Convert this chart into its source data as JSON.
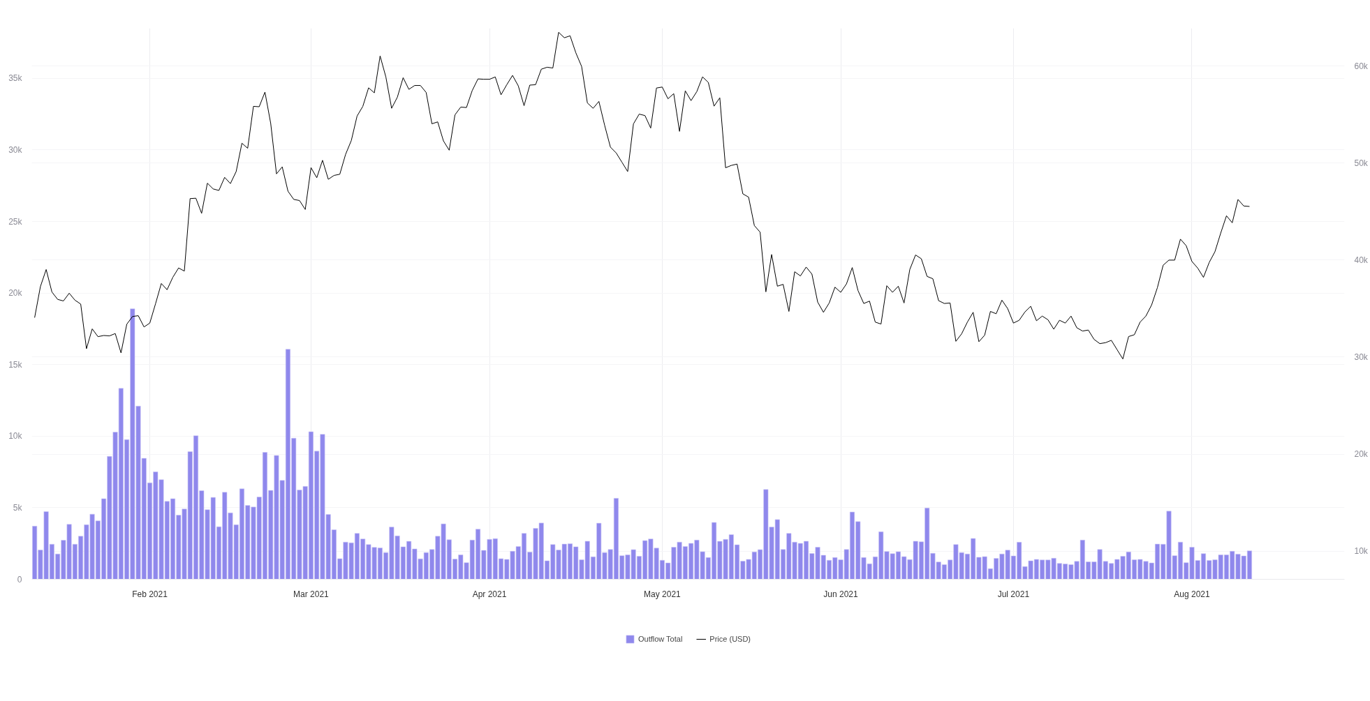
{
  "chart_data": {
    "type": "bar",
    "x": [
      "2021-01-12",
      "2021-01-13",
      "2021-01-14",
      "2021-01-15",
      "2021-01-16",
      "2021-01-17",
      "2021-01-18",
      "2021-01-19",
      "2021-01-20",
      "2021-01-21",
      "2021-01-22",
      "2021-01-23",
      "2021-01-24",
      "2021-01-25",
      "2021-01-26",
      "2021-01-27",
      "2021-01-28",
      "2021-01-29",
      "2021-01-30",
      "2021-01-31",
      "2021-02-01",
      "2021-02-02",
      "2021-02-03",
      "2021-02-04",
      "2021-02-05",
      "2021-02-06",
      "2021-02-07",
      "2021-02-08",
      "2021-02-09",
      "2021-02-10",
      "2021-02-11",
      "2021-02-12",
      "2021-02-13",
      "2021-02-14",
      "2021-02-15",
      "2021-02-16",
      "2021-02-17",
      "2021-02-18",
      "2021-02-19",
      "2021-02-20",
      "2021-02-21",
      "2021-02-22",
      "2021-02-23",
      "2021-02-24",
      "2021-02-25",
      "2021-02-26",
      "2021-02-27",
      "2021-02-28",
      "2021-03-01",
      "2021-03-02",
      "2021-03-03",
      "2021-03-04",
      "2021-03-05",
      "2021-03-06",
      "2021-03-07",
      "2021-03-08",
      "2021-03-09",
      "2021-03-10",
      "2021-03-11",
      "2021-03-12",
      "2021-03-13",
      "2021-03-14",
      "2021-03-15",
      "2021-03-16",
      "2021-03-17",
      "2021-03-18",
      "2021-03-19",
      "2021-03-20",
      "2021-03-21",
      "2021-03-22",
      "2021-03-23",
      "2021-03-24",
      "2021-03-25",
      "2021-03-26",
      "2021-03-27",
      "2021-03-28",
      "2021-03-29",
      "2021-03-30",
      "2021-03-31",
      "2021-04-01",
      "2021-04-02",
      "2021-04-03",
      "2021-04-04",
      "2021-04-05",
      "2021-04-06",
      "2021-04-07",
      "2021-04-08",
      "2021-04-09",
      "2021-04-10",
      "2021-04-11",
      "2021-04-12",
      "2021-04-13",
      "2021-04-14",
      "2021-04-15",
      "2021-04-16",
      "2021-04-17",
      "2021-04-18",
      "2021-04-19",
      "2021-04-20",
      "2021-04-21",
      "2021-04-22",
      "2021-04-23",
      "2021-04-24",
      "2021-04-25",
      "2021-04-26",
      "2021-04-27",
      "2021-04-28",
      "2021-04-29",
      "2021-04-30",
      "2021-05-01",
      "2021-05-02",
      "2021-05-03",
      "2021-05-04",
      "2021-05-05",
      "2021-05-06",
      "2021-05-07",
      "2021-05-08",
      "2021-05-09",
      "2021-05-10",
      "2021-05-11",
      "2021-05-12",
      "2021-05-13",
      "2021-05-14",
      "2021-05-15",
      "2021-05-16",
      "2021-05-17",
      "2021-05-18",
      "2021-05-19",
      "2021-05-20",
      "2021-05-21",
      "2021-05-22",
      "2021-05-23",
      "2021-05-24",
      "2021-05-25",
      "2021-05-26",
      "2021-05-27",
      "2021-05-28",
      "2021-05-29",
      "2021-05-30",
      "2021-05-31",
      "2021-06-01",
      "2021-06-02",
      "2021-06-03",
      "2021-06-04",
      "2021-06-05",
      "2021-06-06",
      "2021-06-07",
      "2021-06-08",
      "2021-06-09",
      "2021-06-10",
      "2021-06-11",
      "2021-06-12",
      "2021-06-13",
      "2021-06-14",
      "2021-06-15",
      "2021-06-16",
      "2021-06-17",
      "2021-06-18",
      "2021-06-19",
      "2021-06-20",
      "2021-06-21",
      "2021-06-22",
      "2021-06-23",
      "2021-06-24",
      "2021-06-25",
      "2021-06-26",
      "2021-06-27",
      "2021-06-28",
      "2021-06-29",
      "2021-06-30",
      "2021-07-01",
      "2021-07-02",
      "2021-07-03",
      "2021-07-04",
      "2021-07-05",
      "2021-07-06",
      "2021-07-07",
      "2021-07-08",
      "2021-07-09",
      "2021-07-10",
      "2021-07-11",
      "2021-07-12",
      "2021-07-13",
      "2021-07-14",
      "2021-07-15",
      "2021-07-16",
      "2021-07-17",
      "2021-07-18",
      "2021-07-19",
      "2021-07-20",
      "2021-07-21",
      "2021-07-22",
      "2021-07-23",
      "2021-07-24",
      "2021-07-25",
      "2021-07-26",
      "2021-07-27",
      "2021-07-28",
      "2021-07-29",
      "2021-07-30",
      "2021-07-31",
      "2021-08-01",
      "2021-08-02",
      "2021-08-03",
      "2021-08-04",
      "2021-08-05",
      "2021-08-06",
      "2021-08-07",
      "2021-08-08",
      "2021-08-09",
      "2021-08-10",
      "2021-08-11"
    ],
    "series": [
      {
        "name": "Outflow Total",
        "color": "#8f88ec",
        "values": [
          3710,
          2050,
          4730,
          2450,
          1770,
          2730,
          3840,
          2450,
          3010,
          3810,
          4550,
          4080,
          5630,
          8590,
          10280,
          13340,
          9760,
          18900,
          12100,
          8450,
          6740,
          7510,
          6960,
          5440,
          5630,
          4480,
          4910,
          8920,
          10030,
          6190,
          4860,
          5720,
          3670,
          6080,
          4640,
          3810,
          6320,
          5160,
          5050,
          5750,
          8870,
          6210,
          8650,
          6910,
          16070,
          9860,
          6240,
          6490,
          10310,
          8950,
          10130,
          4530,
          3460,
          1440,
          2600,
          2550,
          3210,
          2820,
          2430,
          2230,
          2190,
          1870,
          3650,
          3030,
          2270,
          2650,
          2120,
          1430,
          1870,
          2080,
          3010,
          3870,
          2760,
          1410,
          1710,
          1160,
          2740,
          3500,
          2020,
          2790,
          2840,
          1440,
          1390,
          1960,
          2290,
          3210,
          1900,
          3560,
          3930,
          1290,
          2430,
          2050,
          2460,
          2480,
          2270,
          1360,
          2660,
          1570,
          3920,
          1870,
          2080,
          5660,
          1650,
          1710,
          2070,
          1610,
          2700,
          2820,
          2180,
          1330,
          1140,
          2240,
          2600,
          2290,
          2510,
          2740,
          1930,
          1520,
          3970,
          2650,
          2790,
          3120,
          2410,
          1270,
          1390,
          1910,
          2070,
          6270,
          3650,
          4170,
          2080,
          3210,
          2600,
          2510,
          2660,
          1800,
          2240,
          1680,
          1330,
          1520,
          1360,
          2080,
          4700,
          4030,
          1520,
          1080,
          1570,
          3320,
          1940,
          1790,
          1930,
          1580,
          1380,
          2660,
          2620,
          4980,
          1820,
          1210,
          1020,
          1350,
          2430,
          1870,
          1770,
          2850,
          1540,
          1580,
          740,
          1460,
          1770,
          2040,
          1630,
          2590,
          890,
          1290,
          1390,
          1350,
          1350,
          1470,
          1110,
          1070,
          1020,
          1250,
          2740,
          1220,
          1220,
          2080,
          1250,
          1110,
          1390,
          1610,
          1910,
          1360,
          1390,
          1250,
          1140,
          2460,
          2450,
          4760,
          1650,
          2600,
          1160,
          2240,
          1320,
          1790,
          1320,
          1360,
          1710,
          1710,
          1960,
          1760,
          1630,
          1990
        ]
      },
      {
        "name": "Price (USD)",
        "type": "line",
        "color": "#000000",
        "axis": "y2",
        "values": [
          34070,
          37270,
          39030,
          36710,
          35950,
          35790,
          36590,
          35870,
          35470,
          30870,
          32910,
          32110,
          32230,
          32190,
          32430,
          30440,
          33390,
          34190,
          34270,
          33110,
          33510,
          35510,
          37590,
          36950,
          38230,
          39190,
          38870,
          46340,
          46380,
          44820,
          47930,
          47340,
          47180,
          48530,
          47890,
          49130,
          52050,
          51530,
          55850,
          55810,
          57320,
          54090,
          48890,
          49610,
          47100,
          46260,
          46140,
          45220,
          49530,
          48490,
          50290,
          48330,
          48730,
          48850,
          50890,
          52330,
          54850,
          55850,
          57760,
          57240,
          61040,
          58880,
          55650,
          56800,
          58800,
          57600,
          58000,
          58000,
          57280,
          54050,
          54250,
          52290,
          51330,
          54970,
          55770,
          55730,
          57480,
          58680,
          58640,
          58640,
          58880,
          57040,
          58080,
          59040,
          57960,
          55920,
          58040,
          58080,
          59680,
          59880,
          59800,
          63480,
          62920,
          63120,
          61360,
          59960,
          56200,
          55650,
          56360,
          53890,
          51650,
          51050,
          50090,
          49130,
          54040,
          55050,
          54900,
          53610,
          57740,
          57840,
          56630,
          57160,
          53270,
          57450,
          56440,
          57360,
          58890,
          58320,
          55870,
          56730,
          49520,
          49760,
          49900,
          46830,
          46490,
          43560,
          42880,
          36730,
          40580,
          37310,
          37500,
          34710,
          38800,
          38370,
          39280,
          38560,
          35670,
          34620,
          35580,
          37210,
          36680,
          37550,
          39230,
          36870,
          35530,
          35770,
          33610,
          33410,
          37360,
          36680,
          37310,
          35580,
          39040,
          40530,
          40140,
          38320,
          38080,
          35820,
          35530,
          35580,
          31630,
          32400,
          33610,
          34620,
          31590,
          32260,
          34710,
          34470,
          35870,
          35000,
          33510,
          33800,
          34660,
          35240,
          33750,
          34230,
          33850,
          32880,
          33800,
          33510,
          34230,
          33030,
          32690,
          32790,
          31830,
          31390,
          31490,
          31730,
          30770,
          29810,
          32120,
          32310,
          33610,
          34230,
          35380,
          37160,
          39470,
          40000,
          40000,
          42160,
          41490,
          39860,
          39180,
          38220,
          39760,
          40870,
          42790,
          44570,
          43850,
          46250,
          45580,
          45530
        ]
      }
    ],
    "xlim": [
      "2021-01-11T12:00",
      "2021-08-27T12:00"
    ],
    "xticks": [
      {
        "value": "2021-02-01",
        "label": "Feb 2021"
      },
      {
        "value": "2021-03-01",
        "label": "Mar 2021"
      },
      {
        "value": "2021-04-01",
        "label": "Apr 2021"
      },
      {
        "value": "2021-05-01",
        "label": "May 2021"
      },
      {
        "value": "2021-06-01",
        "label": "Jun 2021"
      },
      {
        "value": "2021-07-01",
        "label": "Jul 2021"
      },
      {
        "value": "2021-08-01",
        "label": "Aug 2021"
      }
    ],
    "ylim": [
      0,
      38500
    ],
    "yticks": [
      0,
      {
        "value": 5000,
        "label": "5k"
      },
      {
        "value": 10000,
        "label": "10k"
      },
      {
        "value": 15000,
        "label": "15k"
      },
      {
        "value": 20000,
        "label": "20k"
      },
      {
        "value": 25000,
        "label": "25k"
      },
      {
        "value": 30000,
        "label": "30k"
      },
      {
        "value": 35000,
        "label": "35k"
      }
    ],
    "y2lim": [
      7100,
      63900
    ],
    "y2ticks": [
      {
        "value": 10000,
        "label": "10k"
      },
      {
        "value": 20000,
        "label": "20k"
      },
      {
        "value": 30000,
        "label": "30k"
      },
      {
        "value": 40000,
        "label": "40k"
      },
      {
        "value": 50000,
        "label": "50k"
      },
      {
        "value": 60000,
        "label": "60k"
      }
    ],
    "grid": true,
    "legend": "bottom"
  }
}
